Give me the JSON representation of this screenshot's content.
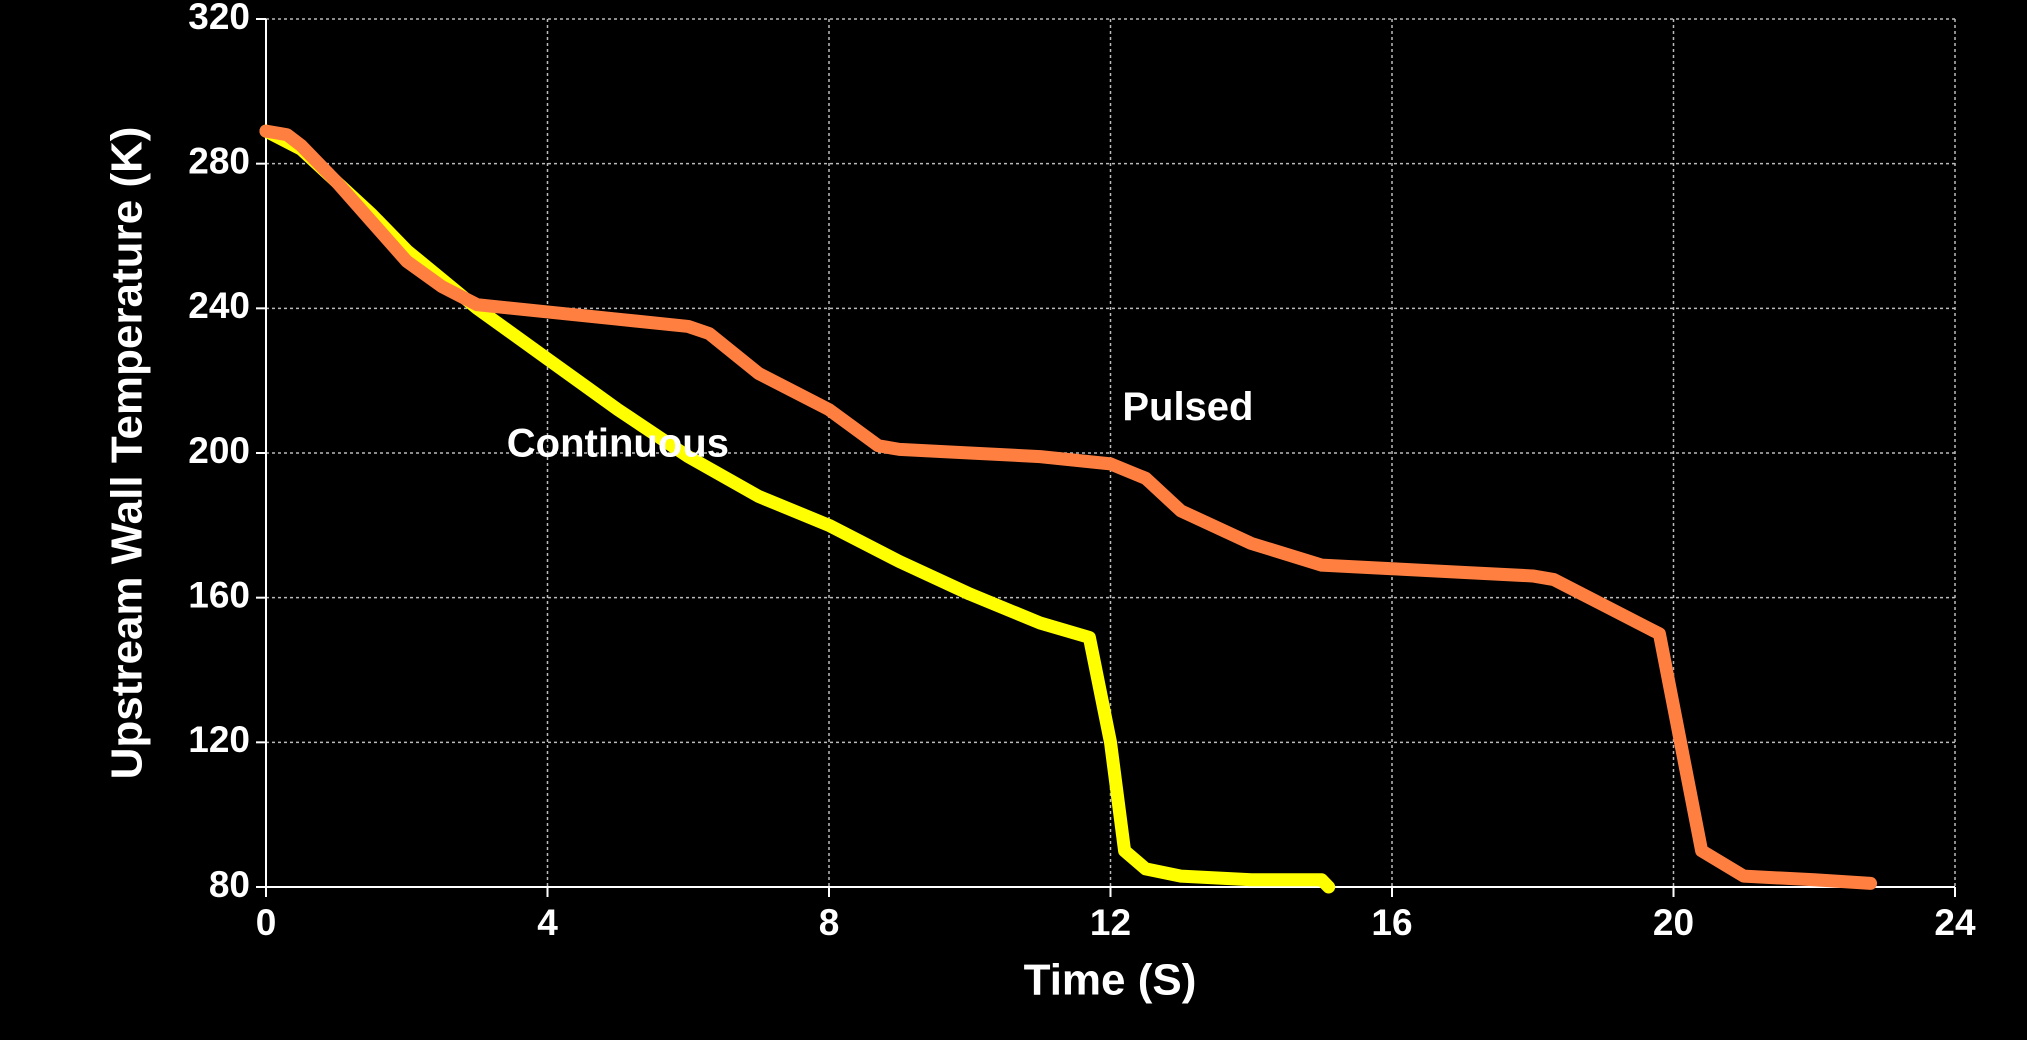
{
  "chart_data": {
    "type": "line",
    "xlabel": "Time (S)",
    "ylabel": "Upstream Wall Temperature (K)",
    "xlim": [
      0,
      24
    ],
    "xticks": [
      0,
      4,
      8,
      12,
      16,
      20,
      24
    ],
    "ylim": [
      80,
      320
    ],
    "yticks": [
      80,
      120,
      160,
      200,
      240,
      280,
      320
    ],
    "grid": true,
    "series": [
      {
        "name": "Continuous",
        "color": "#ffff00",
        "x": [
          0,
          0.5,
          1,
          1.5,
          2,
          2.5,
          3,
          4,
          5,
          6,
          7,
          8,
          9,
          10,
          11,
          11.7,
          12,
          12.2,
          12.5,
          13,
          14,
          15,
          15.1
        ],
        "values": [
          289,
          284,
          275,
          266,
          256,
          248,
          240,
          226,
          212,
          199,
          188,
          180,
          170,
          161,
          153,
          149,
          120,
          90,
          85,
          83,
          82,
          82,
          80
        ]
      },
      {
        "name": "Pulsed",
        "color": "#ff7f41",
        "x": [
          0,
          0.3,
          0.5,
          1,
          1.5,
          2,
          2.5,
          3,
          4,
          5,
          6,
          6.3,
          7,
          8,
          8.7,
          9,
          10,
          11,
          12,
          12.5,
          13,
          14,
          15,
          16,
          17,
          18,
          18.3,
          19,
          19.8,
          20,
          20.2,
          20.4,
          21,
          22,
          22.8
        ],
        "values": [
          289,
          288,
          285,
          275,
          264,
          253,
          246,
          241,
          239,
          237,
          235,
          233,
          222,
          212,
          202,
          201,
          200,
          199,
          197,
          193,
          184,
          175,
          169,
          168,
          167,
          166,
          165,
          158,
          150,
          130,
          110,
          90,
          83,
          82,
          81
        ]
      }
    ],
    "annotations": [
      {
        "text": "Continuous",
        "x": 5,
        "y": 202
      },
      {
        "text": "Pulsed",
        "x": 13.1,
        "y": 212
      }
    ]
  }
}
